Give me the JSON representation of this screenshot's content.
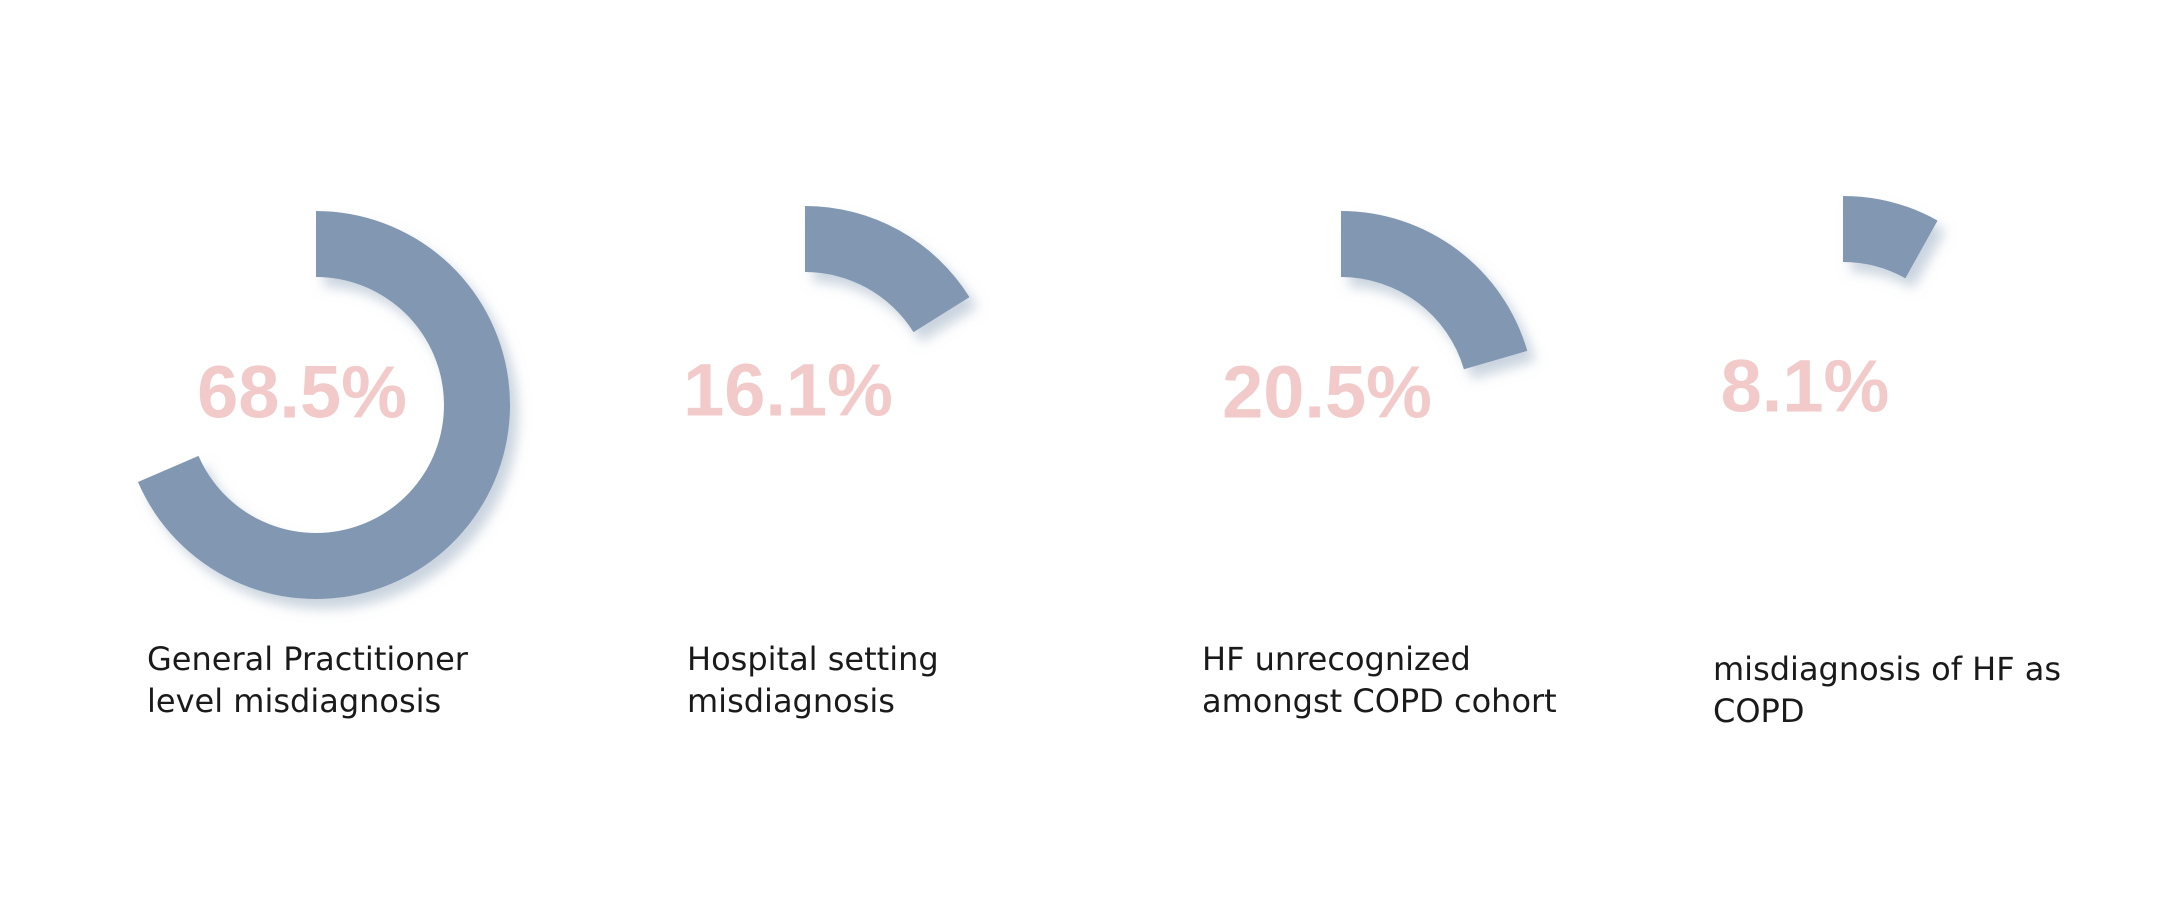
{
  "chart_data": [
    {
      "type": "donut",
      "values": [
        68.5
      ],
      "value_labels": [
        "68.5%"
      ],
      "label": "General Practitioner level misdiagnosis",
      "color": "#8197b2"
    },
    {
      "type": "donut",
      "values": [
        16.1
      ],
      "value_labels": [
        "16.1%"
      ],
      "label": "Hospital setting misdiagnosis",
      "color": "#8197b2"
    },
    {
      "type": "donut",
      "values": [
        20.5
      ],
      "value_labels": [
        "20.5%"
      ],
      "label": "HF unrecognized amongst COPD cohort",
      "color": "#8197b2"
    },
    {
      "type": "donut",
      "values": [
        8.1
      ],
      "value_labels": [
        "8.1%"
      ],
      "label": "misdiagnosis of HF as COPD",
      "color": "#8197b2"
    }
  ]
}
